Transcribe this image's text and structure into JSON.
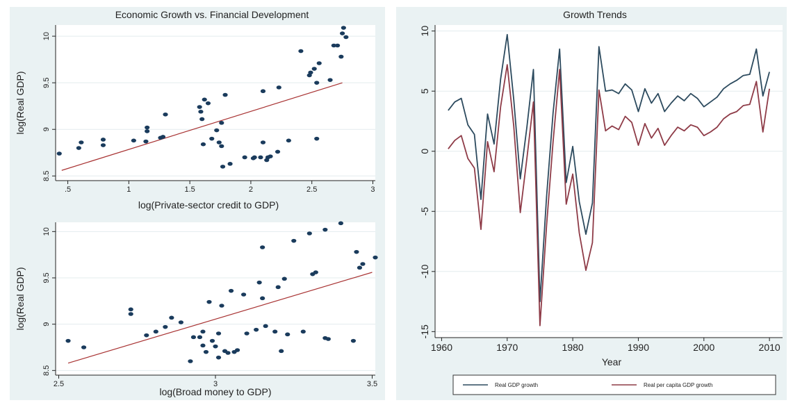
{
  "chart_data": [
    {
      "type": "scatter",
      "title": "Economic Growth vs. Financial Development",
      "xlabel": "log(Private-sector credit to GDP)",
      "ylabel": "log(Real GDP)",
      "xlim": [
        0.4,
        3.02
      ],
      "ylim": [
        8.45,
        10.12
      ],
      "xticks": [
        0.5,
        1,
        1.5,
        2,
        2.5,
        3
      ],
      "xtick_labels": [
        ".5",
        "1",
        "1.5",
        "2",
        "2.5",
        "3"
      ],
      "yticks": [
        8.5,
        9,
        9.5,
        10
      ],
      "ytick_labels": [
        "8.5",
        "9",
        "9.5",
        "10"
      ],
      "marker_color": "#1a3b5c",
      "fit_color": "#a83232",
      "fit": {
        "x": [
          0.45,
          2.75
        ],
        "y": [
          8.56,
          9.5
        ]
      },
      "points": [
        {
          "x": 0.43,
          "y": 8.74
        },
        {
          "x": 0.59,
          "y": 8.8
        },
        {
          "x": 0.61,
          "y": 8.86
        },
        {
          "x": 0.79,
          "y": 8.83
        },
        {
          "x": 0.79,
          "y": 8.89
        },
        {
          "x": 1.04,
          "y": 8.88
        },
        {
          "x": 1.14,
          "y": 8.87
        },
        {
          "x": 1.15,
          "y": 8.98
        },
        {
          "x": 1.15,
          "y": 9.02
        },
        {
          "x": 1.26,
          "y": 8.91
        },
        {
          "x": 1.28,
          "y": 8.92
        },
        {
          "x": 1.3,
          "y": 9.16
        },
        {
          "x": 1.58,
          "y": 9.24
        },
        {
          "x": 1.59,
          "y": 9.19
        },
        {
          "x": 1.6,
          "y": 9.11
        },
        {
          "x": 1.61,
          "y": 8.84
        },
        {
          "x": 1.62,
          "y": 9.32
        },
        {
          "x": 1.65,
          "y": 9.28
        },
        {
          "x": 1.68,
          "y": 8.9
        },
        {
          "x": 1.72,
          "y": 8.99
        },
        {
          "x": 1.74,
          "y": 8.86
        },
        {
          "x": 1.76,
          "y": 8.82
        },
        {
          "x": 1.76,
          "y": 9.07
        },
        {
          "x": 1.77,
          "y": 8.6
        },
        {
          "x": 1.79,
          "y": 9.37
        },
        {
          "x": 1.83,
          "y": 8.63
        },
        {
          "x": 1.95,
          "y": 8.7
        },
        {
          "x": 2.02,
          "y": 8.69
        },
        {
          "x": 2.03,
          "y": 8.7
        },
        {
          "x": 2.08,
          "y": 8.7
        },
        {
          "x": 2.1,
          "y": 8.86
        },
        {
          "x": 2.1,
          "y": 9.41
        },
        {
          "x": 2.13,
          "y": 8.67
        },
        {
          "x": 2.14,
          "y": 8.7
        },
        {
          "x": 2.16,
          "y": 8.71
        },
        {
          "x": 2.22,
          "y": 8.76
        },
        {
          "x": 2.23,
          "y": 9.45
        },
        {
          "x": 2.31,
          "y": 8.88
        },
        {
          "x": 2.41,
          "y": 9.84
        },
        {
          "x": 2.48,
          "y": 9.58
        },
        {
          "x": 2.49,
          "y": 9.61
        },
        {
          "x": 2.52,
          "y": 9.65
        },
        {
          "x": 2.54,
          "y": 9.5
        },
        {
          "x": 2.54,
          "y": 8.9
        },
        {
          "x": 2.56,
          "y": 9.71
        },
        {
          "x": 2.65,
          "y": 9.53
        },
        {
          "x": 2.68,
          "y": 9.9
        },
        {
          "x": 2.71,
          "y": 9.9
        },
        {
          "x": 2.74,
          "y": 9.78
        },
        {
          "x": 2.75,
          "y": 10.03
        },
        {
          "x": 2.76,
          "y": 10.09
        },
        {
          "x": 2.78,
          "y": 9.99
        }
      ]
    },
    {
      "type": "scatter",
      "title": "",
      "xlabel": "log(Broad money to GDP)",
      "ylabel": "log(Real GDP)",
      "xlim": [
        2.49,
        3.51
      ],
      "ylim": [
        8.45,
        10.1
      ],
      "xticks": [
        2.5,
        3,
        3.5
      ],
      "xtick_labels": [
        "2.5",
        "3",
        "3.5"
      ],
      "yticks": [
        8.5,
        9,
        9.5,
        10
      ],
      "ytick_labels": [
        "8.5",
        "9",
        "9.5",
        "10"
      ],
      "marker_color": "#1a3b5c",
      "fit_color": "#a83232",
      "fit": {
        "x": [
          2.53,
          3.5
        ],
        "y": [
          8.58,
          9.56
        ]
      },
      "points": [
        {
          "x": 2.53,
          "y": 8.82
        },
        {
          "x": 2.58,
          "y": 8.75
        },
        {
          "x": 2.73,
          "y": 9.16
        },
        {
          "x": 2.73,
          "y": 9.11
        },
        {
          "x": 2.78,
          "y": 8.88
        },
        {
          "x": 2.81,
          "y": 8.92
        },
        {
          "x": 2.84,
          "y": 8.97
        },
        {
          "x": 2.86,
          "y": 9.07
        },
        {
          "x": 2.89,
          "y": 9.02
        },
        {
          "x": 2.92,
          "y": 8.6
        },
        {
          "x": 2.93,
          "y": 8.86
        },
        {
          "x": 2.95,
          "y": 8.86
        },
        {
          "x": 2.96,
          "y": 8.77
        },
        {
          "x": 2.96,
          "y": 8.92
        },
        {
          "x": 2.97,
          "y": 8.7
        },
        {
          "x": 2.98,
          "y": 9.24
        },
        {
          "x": 2.99,
          "y": 8.82
        },
        {
          "x": 3.0,
          "y": 8.76
        },
        {
          "x": 3.01,
          "y": 8.64
        },
        {
          "x": 3.01,
          "y": 8.9
        },
        {
          "x": 3.02,
          "y": 9.2
        },
        {
          "x": 3.03,
          "y": 8.71
        },
        {
          "x": 3.04,
          "y": 8.69
        },
        {
          "x": 3.05,
          "y": 9.36
        },
        {
          "x": 3.06,
          "y": 8.7
        },
        {
          "x": 3.07,
          "y": 8.72
        },
        {
          "x": 3.09,
          "y": 9.32
        },
        {
          "x": 3.1,
          "y": 8.9
        },
        {
          "x": 3.13,
          "y": 8.94
        },
        {
          "x": 3.14,
          "y": 9.45
        },
        {
          "x": 3.15,
          "y": 9.28
        },
        {
          "x": 3.15,
          "y": 9.83
        },
        {
          "x": 3.16,
          "y": 8.98
        },
        {
          "x": 3.19,
          "y": 8.92
        },
        {
          "x": 3.2,
          "y": 9.4
        },
        {
          "x": 3.21,
          "y": 8.71
        },
        {
          "x": 3.22,
          "y": 9.49
        },
        {
          "x": 3.23,
          "y": 8.89
        },
        {
          "x": 3.25,
          "y": 9.9
        },
        {
          "x": 3.28,
          "y": 8.92
        },
        {
          "x": 3.3,
          "y": 9.98
        },
        {
          "x": 3.31,
          "y": 9.54
        },
        {
          "x": 3.32,
          "y": 9.56
        },
        {
          "x": 3.35,
          "y": 10.02
        },
        {
          "x": 3.35,
          "y": 8.85
        },
        {
          "x": 3.36,
          "y": 8.84
        },
        {
          "x": 3.4,
          "y": 10.09
        },
        {
          "x": 3.44,
          "y": 8.82
        },
        {
          "x": 3.45,
          "y": 9.78
        },
        {
          "x": 3.46,
          "y": 9.61
        },
        {
          "x": 3.47,
          "y": 9.65
        },
        {
          "x": 3.51,
          "y": 9.72
        }
      ]
    },
    {
      "type": "line",
      "title": "Growth Trends",
      "xlabel": "Year",
      "ylabel": "",
      "xlim": [
        1959,
        2012
      ],
      "ylim": [
        -15.5,
        10.5
      ],
      "xticks": [
        1960,
        1970,
        1980,
        1990,
        2000,
        2010
      ],
      "xtick_labels": [
        "1960",
        "1970",
        "1980",
        "1990",
        "2000",
        "2010"
      ],
      "yticks": [
        -15,
        -10,
        -5,
        0,
        5,
        10
      ],
      "ytick_labels": [
        "-15",
        "-10",
        "-5",
        "0",
        "5",
        "10"
      ],
      "grid": "horizontal",
      "legend_position": "bottom",
      "x": [
        1961,
        1962,
        1963,
        1964,
        1965,
        1966,
        1967,
        1968,
        1969,
        1970,
        1971,
        1972,
        1973,
        1974,
        1975,
        1976,
        1977,
        1978,
        1979,
        1980,
        1981,
        1982,
        1983,
        1984,
        1985,
        1986,
        1987,
        1988,
        1989,
        1990,
        1991,
        1992,
        1993,
        1994,
        1995,
        1996,
        1997,
        1998,
        1999,
        2000,
        2001,
        2002,
        2003,
        2004,
        2005,
        2006,
        2007,
        2008,
        2009,
        2010
      ],
      "series": [
        {
          "name": "Real GDP growth",
          "color": "#2c4a5e",
          "values": [
            3.4,
            4.1,
            4.4,
            2.2,
            1.4,
            -4.0,
            3.1,
            0.6,
            6.0,
            9.7,
            4.3,
            -2.3,
            2.0,
            6.8,
            -12.5,
            -3.8,
            3.2,
            8.5,
            -2.6,
            0.4,
            -4.2,
            -6.9,
            -4.3,
            8.7,
            5.0,
            5.1,
            4.8,
            5.6,
            5.1,
            3.3,
            5.2,
            4.0,
            4.8,
            3.3,
            4.0,
            4.6,
            4.2,
            4.8,
            4.4,
            3.7,
            4.1,
            4.5,
            5.2,
            5.6,
            5.9,
            6.3,
            6.4,
            8.5,
            4.6,
            6.6
          ]
        },
        {
          "name": "Real per capita GDP growth",
          "color": "#8e3b47",
          "values": [
            0.2,
            0.9,
            1.3,
            -0.6,
            -1.4,
            -6.5,
            0.8,
            -1.7,
            3.7,
            7.2,
            2.1,
            -5.1,
            -0.6,
            4.1,
            -14.5,
            -6.2,
            0.8,
            6.8,
            -4.4,
            -1.9,
            -6.8,
            -9.9,
            -7.6,
            5.1,
            1.7,
            2.1,
            1.8,
            2.9,
            2.4,
            0.5,
            2.3,
            1.1,
            1.9,
            0.5,
            1.3,
            2.0,
            1.7,
            2.2,
            2.0,
            1.3,
            1.6,
            2.0,
            2.7,
            3.1,
            3.3,
            3.8,
            3.9,
            5.8,
            1.6,
            5.2
          ]
        }
      ]
    }
  ]
}
